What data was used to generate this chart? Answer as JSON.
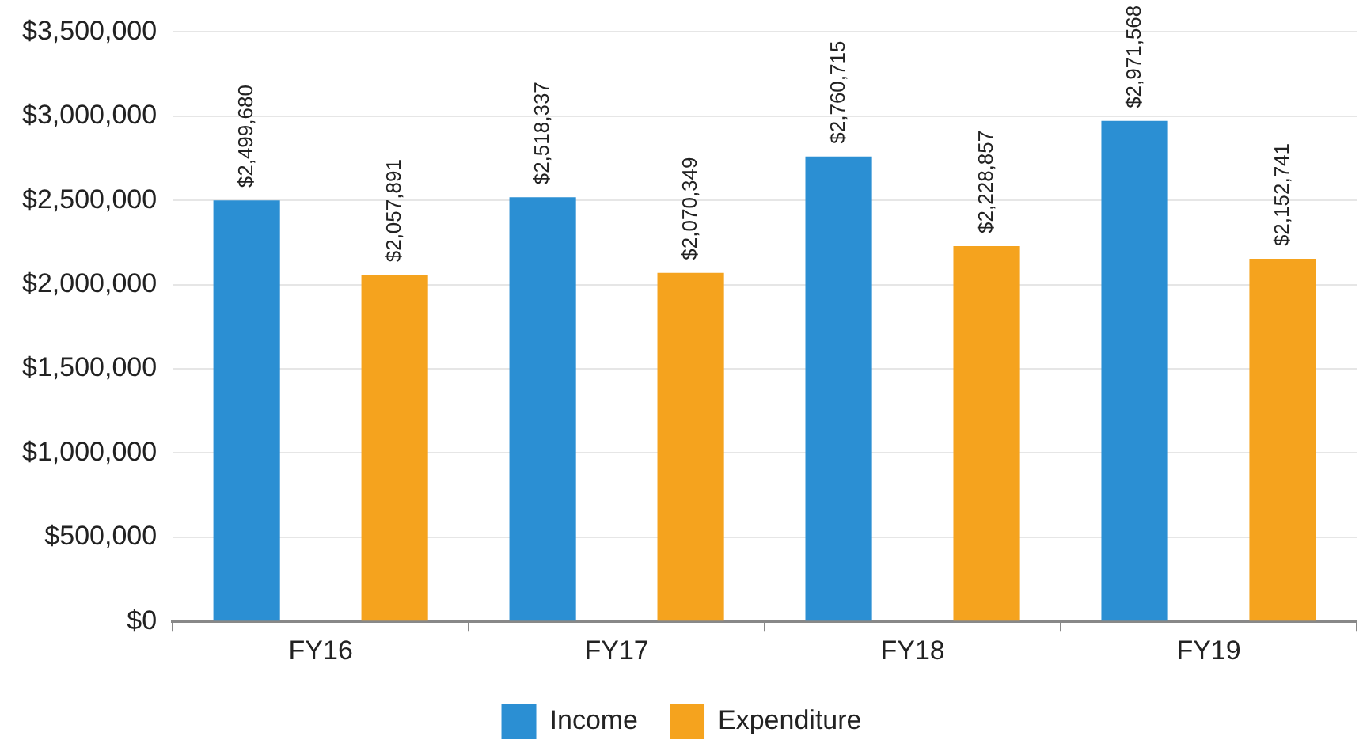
{
  "chart_data": {
    "type": "bar",
    "categories": [
      "FY16",
      "FY17",
      "FY18",
      "FY19"
    ],
    "series": [
      {
        "name": "Income",
        "color": "#2b8fd3",
        "values": [
          2499680,
          2518337,
          2760715,
          2971568
        ],
        "value_labels": [
          "$2,499,680",
          "$2,518,337",
          "$2,760,715",
          "$2,971,568"
        ]
      },
      {
        "name": "Expenditure",
        "color": "#f5a31e",
        "values": [
          2057891,
          2070349,
          2228857,
          2152741
        ],
        "value_labels": [
          "$2,057,891",
          "$2,070,349",
          "$2,228,857",
          "$2,152,741"
        ]
      }
    ],
    "ylim": [
      0,
      3500000
    ],
    "yticks": [
      {
        "value": 0,
        "label": "$0"
      },
      {
        "value": 500000,
        "label": "$500,000"
      },
      {
        "value": 1000000,
        "label": "$1,000,000"
      },
      {
        "value": 1500000,
        "label": "$1,500,000"
      },
      {
        "value": 2000000,
        "label": "$2,000,000"
      },
      {
        "value": 2500000,
        "label": "$2,500,000"
      },
      {
        "value": 3000000,
        "label": "$3,000,000"
      },
      {
        "value": 3500000,
        "label": "$3,500,000"
      }
    ],
    "grid": "y",
    "legend": "bottom"
  }
}
